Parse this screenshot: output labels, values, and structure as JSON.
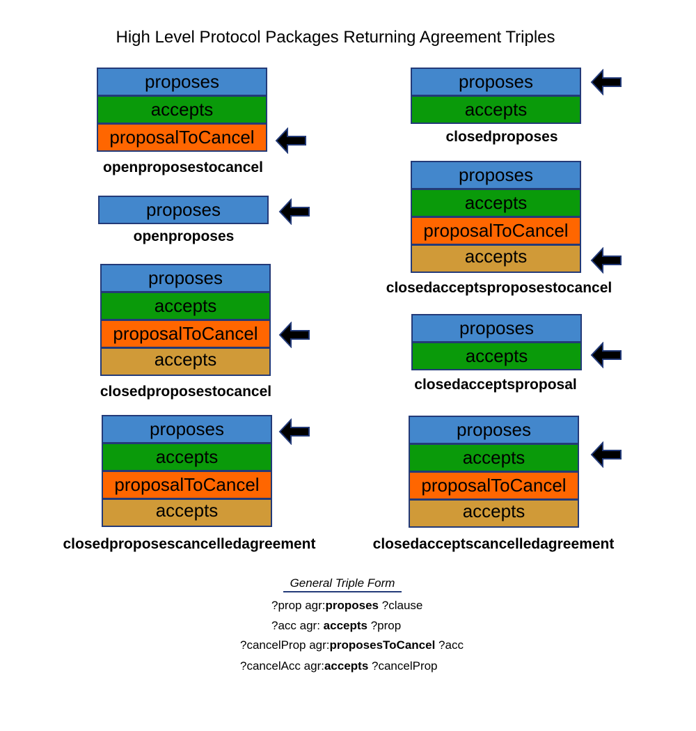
{
  "title": "High Level Protocol Packages Returning Agreement Triples",
  "colors": {
    "proposes": "#4387cc",
    "accepts": "#0a9a0a",
    "proposalToCancel": "#ff6600",
    "accepts_cancel": "#d09a38",
    "border": "#233a78",
    "arrow_fill": "#000000",
    "arrow_stroke": "#233a78"
  },
  "labels": {
    "proposes": "proposes",
    "accepts": "accepts",
    "proposalToCancel": "proposalToCancel"
  },
  "packages": {
    "openproposestocancel": {
      "name": "openproposestocancel",
      "blocks": [
        "proposes",
        "accepts",
        "proposalToCancel"
      ]
    },
    "openproposes": {
      "name": "openproposes",
      "blocks": [
        "proposes"
      ]
    },
    "closedproposestocancel": {
      "name": "closedproposestocancel",
      "blocks": [
        "proposes",
        "accepts",
        "proposalToCancel",
        "accepts"
      ]
    },
    "closedproposescancelledagreement": {
      "name": "closedproposescancelledagreement",
      "blocks": [
        "proposes",
        "accepts",
        "proposalToCancel",
        "accepts"
      ]
    },
    "closedproposes": {
      "name": "closedproposes",
      "blocks": [
        "proposes",
        "accepts"
      ]
    },
    "closedacceptsproposestocancel": {
      "name": "closedacceptsproposestocancel",
      "blocks": [
        "proposes",
        "accepts",
        "proposalToCancel",
        "accepts"
      ]
    },
    "closedacceptsproposal": {
      "name": "closedacceptsproposal",
      "blocks": [
        "proposes",
        "accepts"
      ]
    },
    "closedacceptscancelledagreement": {
      "name": "closedacceptscancelledagreement",
      "blocks": [
        "proposes",
        "accepts",
        "proposalToCancel",
        "accepts"
      ]
    }
  },
  "legend": {
    "title": "General Triple Form",
    "lines": [
      {
        "pre": "?prop agr:",
        "predicate": "proposes",
        "post": " ?clause"
      },
      {
        "pre": "?acc agr: ",
        "predicate": "accepts",
        "post": " ?prop"
      },
      {
        "pre": "?cancelProp agr:",
        "predicate": "proposesToCancel",
        "post": "  ?acc"
      },
      {
        "pre": "?cancelAcc agr:",
        "predicate": "accepts",
        "post": " ?cancelProp"
      }
    ]
  }
}
